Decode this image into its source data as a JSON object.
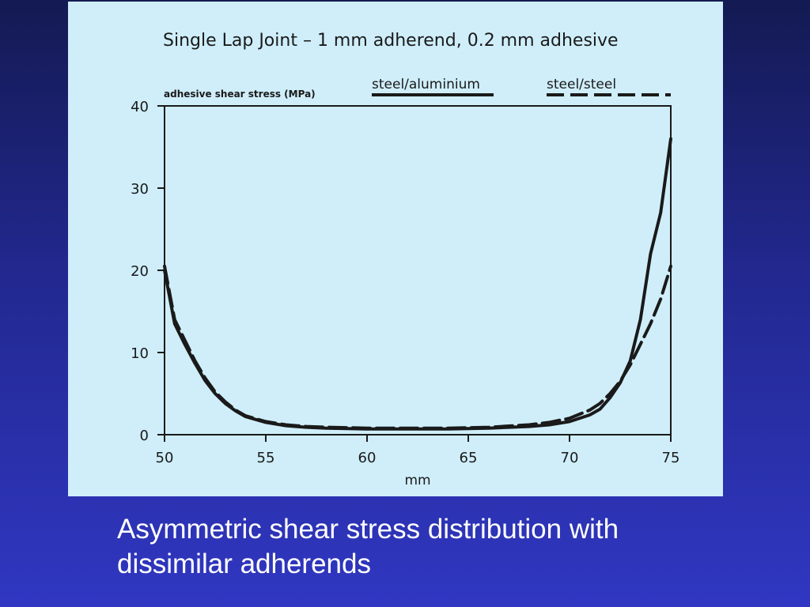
{
  "colors": {
    "slide_background_top": "#141a52",
    "slide_background_bottom": "#3037c2",
    "figure_background": "#cfeefa",
    "ink": "#1a1a1a",
    "caption_text": "#ffffff"
  },
  "chart_data": {
    "type": "line",
    "title": "Single Lap Joint – 1 mm adherend, 0.2 mm adhesive",
    "ylabel": "adhesive shear stress (MPa)",
    "xlabel": "mm",
    "xlim": [
      50,
      75
    ],
    "ylim": [
      0,
      40
    ],
    "x_ticks": [
      50,
      55,
      60,
      65,
      70,
      75
    ],
    "y_ticks": [
      0,
      10,
      20,
      30,
      40
    ],
    "grid": false,
    "legend_position": "top-right",
    "series": [
      {
        "name": "steel/aluminium",
        "style": "solid",
        "x": [
          50,
          50.5,
          51,
          51.5,
          52,
          52.5,
          53,
          53.5,
          54,
          55,
          56,
          57,
          58,
          60,
          62,
          64,
          66,
          68,
          69,
          70,
          71,
          71.5,
          72,
          72.5,
          73,
          73.5,
          74,
          74.5,
          75
        ],
        "y": [
          20,
          13.5,
          11,
          8.7,
          6.6,
          5.0,
          3.8,
          2.9,
          2.2,
          1.5,
          1.1,
          0.9,
          0.8,
          0.7,
          0.7,
          0.7,
          0.8,
          1.0,
          1.2,
          1.6,
          2.4,
          3.1,
          4.5,
          6.3,
          9.0,
          14.0,
          22.0,
          27.0,
          36.0
        ]
      },
      {
        "name": "steel/steel",
        "style": "dashed",
        "x": [
          50,
          50.5,
          51,
          51.5,
          52,
          52.5,
          53,
          53.5,
          54,
          55,
          56,
          57,
          58,
          60,
          62,
          64,
          66,
          68,
          69,
          70,
          71,
          71.5,
          72,
          72.5,
          73,
          73.5,
          74,
          74.5,
          75
        ],
        "y": [
          20.5,
          14.0,
          11.5,
          9.0,
          6.9,
          5.2,
          4.0,
          3.0,
          2.3,
          1.6,
          1.2,
          1.0,
          0.9,
          0.8,
          0.8,
          0.8,
          0.9,
          1.2,
          1.5,
          2.0,
          3.0,
          3.8,
          5.0,
          6.5,
          8.5,
          11.0,
          13.5,
          16.5,
          20.5
        ]
      }
    ]
  },
  "caption": {
    "line1": "Asymmetric shear stress distribution with",
    "line2": "dissimilar adherends"
  }
}
